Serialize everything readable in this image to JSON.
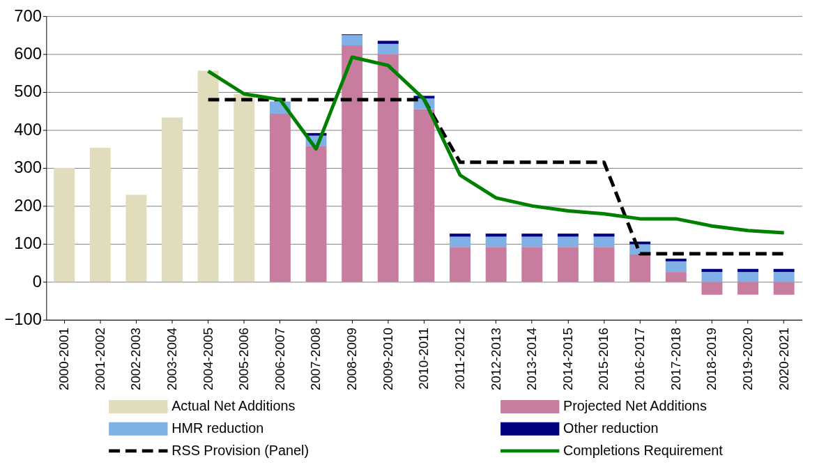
{
  "chart_data": {
    "type": "bar",
    "stacked": true,
    "categories": [
      "2000-2001",
      "2001-2002",
      "2002-2003",
      "2003-2004",
      "2004-2005",
      "2005-2006",
      "2006-2007",
      "2007-2008",
      "2008-2009",
      "2009-2010",
      "2010-2011",
      "2011-2012",
      "2012-2013",
      "2013-2014",
      "2014-2015",
      "2015-2016",
      "2016-2017",
      "2017-2018",
      "2018-2019",
      "2019-2020",
      "2020-2021"
    ],
    "series": [
      {
        "name": "Actual Net Additions",
        "color": "#e0dcbc",
        "values": [
          300,
          353,
          229,
          433,
          556,
          495,
          null,
          null,
          null,
          null,
          null,
          null,
          null,
          null,
          null,
          null,
          null,
          null,
          null,
          null,
          null
        ]
      },
      {
        "name": "Projected Net Additions",
        "color": "#c87ca0",
        "values": [
          null,
          null,
          null,
          null,
          null,
          null,
          443,
          358,
          623,
          600,
          455,
          92,
          92,
          92,
          92,
          92,
          72,
          26,
          -34,
          -34,
          -34
        ]
      },
      {
        "name": "HMR reduction",
        "color": "#7fb0e6",
        "values": [
          null,
          null,
          null,
          null,
          null,
          null,
          32,
          27,
          27,
          27,
          28,
          27,
          27,
          27,
          27,
          27,
          27,
          28,
          26,
          26,
          26
        ]
      },
      {
        "name": "Other reduction",
        "color": "#000080",
        "values": [
          null,
          null,
          null,
          null,
          null,
          null,
          0,
          7,
          2,
          8,
          7,
          8,
          8,
          8,
          8,
          8,
          7,
          7,
          8,
          8,
          8
        ]
      },
      {
        "name": "RSS Provision (Panel)",
        "type": "line",
        "line_style": "dashed",
        "color": "#000000",
        "values": [
          null,
          null,
          null,
          null,
          480,
          480,
          480,
          480,
          480,
          480,
          480,
          315,
          315,
          315,
          315,
          315,
          74,
          74,
          74,
          74,
          74
        ]
      },
      {
        "name": "Completions Requirement",
        "type": "line",
        "line_style": "solid",
        "color": "#008000",
        "values": [
          null,
          null,
          null,
          null,
          555,
          495,
          480,
          350,
          592,
          570,
          481,
          281,
          221,
          200,
          187,
          179,
          166,
          166,
          147,
          135,
          129
        ]
      }
    ],
    "ylim": [
      -100,
      700
    ],
    "yticks": [
      -100,
      0,
      100,
      200,
      300,
      400,
      500,
      600,
      700
    ],
    "grid": "y",
    "legend": "bottom",
    "marker": "none"
  }
}
